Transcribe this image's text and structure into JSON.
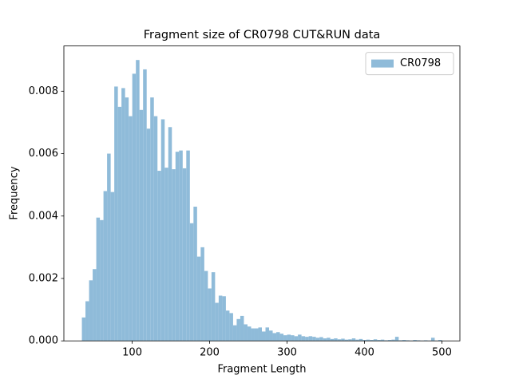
{
  "chart_data": {
    "type": "histogram",
    "title": "Fragment size of CR0798 CUT&RUN data",
    "xlabel": "Fragment Length",
    "ylabel": "Frequency",
    "bins": [
      35,
      39.65,
      44.3,
      48.95,
      53.6,
      58.25,
      62.9,
      67.55,
      72.2,
      76.85,
      81.5,
      86.15,
      90.8,
      95.45,
      100.1,
      104.75,
      109.4,
      114.05,
      118.7,
      123.35,
      128,
      132.65,
      137.3,
      141.95,
      146.6,
      151.25,
      155.9,
      160.55,
      165.2,
      169.85,
      174.5,
      179.15,
      183.8,
      188.45,
      193.1,
      197.75,
      202.4,
      207.05,
      211.7,
      216.35,
      221,
      225.65,
      230.3,
      234.95,
      239.6,
      244.25,
      248.9,
      253.55,
      258.2,
      262.85,
      267.5,
      272.15,
      276.8,
      281.45,
      286.1,
      290.75,
      295.4,
      300.05,
      304.7,
      309.35,
      314,
      318.65,
      323.3,
      327.95,
      332.6,
      337.25,
      341.9,
      346.55,
      351.2,
      355.85,
      360.5,
      365.15,
      369.8,
      374.45,
      379.1,
      383.75,
      388.4,
      393.05,
      397.7,
      402.35,
      407,
      411.65,
      416.3,
      420.95,
      425.6,
      430.25,
      434.9,
      439.55,
      444.2,
      448.85,
      453.5,
      458.15,
      462.8,
      467.45,
      472.1,
      476.75,
      481.4,
      486.05,
      490.7,
      495.35,
      500
    ],
    "series": [
      {
        "name": "CR0798",
        "color": "#8fbbd9",
        "values": [
          0.00075,
          0.00127,
          0.00194,
          0.0023,
          0.00395,
          0.00387,
          0.0048,
          0.006,
          0.00477,
          0.00815,
          0.0075,
          0.0081,
          0.0078,
          0.0072,
          0.00856,
          0.009,
          0.0074,
          0.0087,
          0.0068,
          0.0078,
          0.0072,
          0.00545,
          0.0071,
          0.00555,
          0.00685,
          0.0055,
          0.00606,
          0.0061,
          0.00553,
          0.0061,
          0.00377,
          0.0043,
          0.0027,
          0.003,
          0.00224,
          0.00168,
          0.0022,
          0.00122,
          0.00145,
          0.00143,
          0.00097,
          0.00089,
          0.0005,
          0.0007,
          0.0008,
          0.00053,
          0.00046,
          0.0004,
          0.0004,
          0.00043,
          0.0003,
          0.00043,
          0.00033,
          0.00025,
          0.00028,
          0.00023,
          0.00018,
          0.0002,
          0.00018,
          0.00015,
          0.0002,
          0.00015,
          0.00013,
          0.00015,
          0.00013,
          0.0001,
          0.00012,
          8e-05,
          0.0001,
          6e-05,
          8e-05,
          5e-05,
          7e-05,
          4e-05,
          5e-05,
          8e-05,
          4e-05,
          6e-05,
          3e-05,
          4e-05,
          3e-05,
          5e-05,
          3e-05,
          4e-05,
          2e-05,
          3e-05,
          4e-05,
          0.00013,
          2e-05,
          3e-05,
          2e-05,
          1e-05,
          3e-05,
          2e-05,
          1e-05,
          2e-05,
          1e-05,
          0.0001,
          1e-05,
          3e-05
        ]
      }
    ],
    "xlim": [
      11.75,
      523.25
    ],
    "xticks": [
      100,
      200,
      300,
      400,
      500
    ],
    "ylim": [
      0,
      0.00945
    ],
    "yticks": [
      {
        "value": 0,
        "label": "0.000"
      },
      {
        "value": 0.002,
        "label": "0.002"
      },
      {
        "value": 0.004,
        "label": "0.004"
      },
      {
        "value": 0.006,
        "label": "0.006"
      },
      {
        "value": 0.008,
        "label": "0.008"
      }
    ],
    "legend": "upper right",
    "grid": false
  }
}
